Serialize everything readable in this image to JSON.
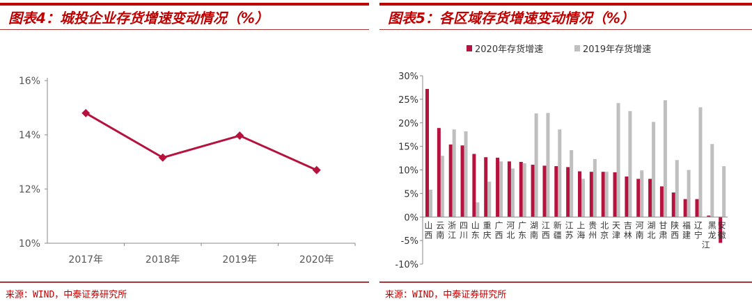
{
  "left": {
    "title": "图表4：城投企业存货增速变动情况（%）",
    "source": "来源：WIND，中泰证券研究所"
  },
  "right": {
    "title": "图表5：各区域存货增速变动情况（%）",
    "source": "来源：WIND，中泰证券研究所"
  },
  "chart_data": [
    {
      "type": "line",
      "categories": [
        "2017年",
        "2018年",
        "2019年",
        "2020年"
      ],
      "values": [
        14.8,
        13.16,
        13.97,
        12.7
      ],
      "ylim": [
        10,
        16
      ],
      "yticks": [
        "10%",
        "12%",
        "14%",
        "16%"
      ],
      "ytick_values": [
        10,
        12,
        14,
        16
      ],
      "color": "#B5123D",
      "marker": "diamond",
      "grid": false
    },
    {
      "type": "bar",
      "categories": [
        "山西",
        "云南",
        "浙江",
        "四川",
        "山东",
        "重庆",
        "广西",
        "河北",
        "广东",
        "湖南",
        "江西",
        "新疆",
        "江苏",
        "上海",
        "贵州",
        "北京",
        "天津",
        "吉林",
        "河南",
        "湖北",
        "甘肃",
        "陕西",
        "福建",
        "辽宁",
        "黑龙江",
        "安徽"
      ],
      "series": [
        {
          "name": "2020年存货增速",
          "color": "#B5123D",
          "values": [
            27.2,
            18.9,
            15.4,
            15.2,
            13.4,
            12.7,
            12.6,
            11.8,
            11.7,
            11.1,
            10.9,
            10.8,
            10.6,
            9.7,
            9.6,
            9.6,
            9.5,
            8.6,
            8.1,
            8.1,
            6.5,
            5.2,
            3.8,
            3.8,
            0.3,
            -5.5
          ]
        },
        {
          "name": "2019年存货增速",
          "color": "#BFBFBF",
          "values": [
            5.8,
            13.0,
            18.6,
            18.2,
            3.1,
            7.5,
            11.8,
            10.3,
            11.4,
            22.0,
            22.1,
            18.6,
            14.2,
            8.1,
            12.3,
            9.6,
            24.2,
            22.5,
            9.9,
            20.2,
            24.8,
            12.1,
            10.0,
            23.3,
            15.5,
            10.8
          ]
        }
      ],
      "ylim": [
        -10,
        30
      ],
      "yticks": [
        "-10%",
        "-5%",
        "0%",
        "5%",
        "10%",
        "15%",
        "20%",
        "25%",
        "30%"
      ],
      "ytick_values": [
        -10,
        -5,
        0,
        5,
        10,
        15,
        20,
        25,
        30
      ],
      "legend": "top",
      "grid": false
    }
  ]
}
